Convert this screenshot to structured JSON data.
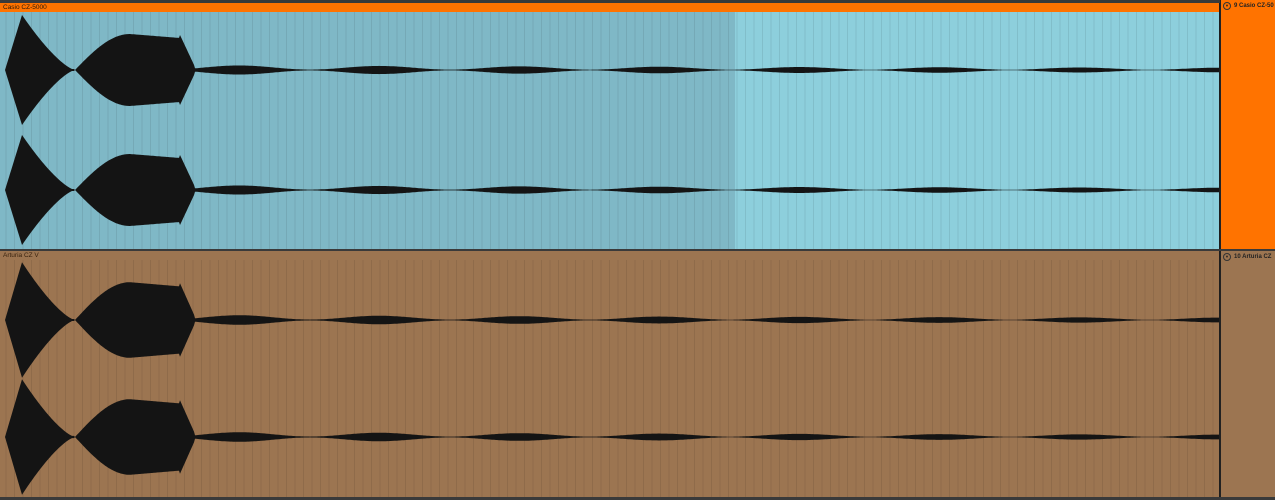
{
  "tracks": [
    {
      "clip_name": "Casio CZ-5000",
      "track_name": "9 Casio CZ-50",
      "clip_color": "#8dcfdc",
      "clip_selected_color": "#7fb8c6",
      "title_color": "#ff7300",
      "head_color": "#ff7300",
      "fold_icon": "chevron-down-icon"
    },
    {
      "clip_name": "Arturia CZ V",
      "track_name": "10 Arturia CZ",
      "clip_color": "#9c7551",
      "title_color": "#9c7551",
      "head_color": "#9c7551",
      "fold_icon": "chevron-down-icon"
    }
  ],
  "waveform_color": "#141414"
}
